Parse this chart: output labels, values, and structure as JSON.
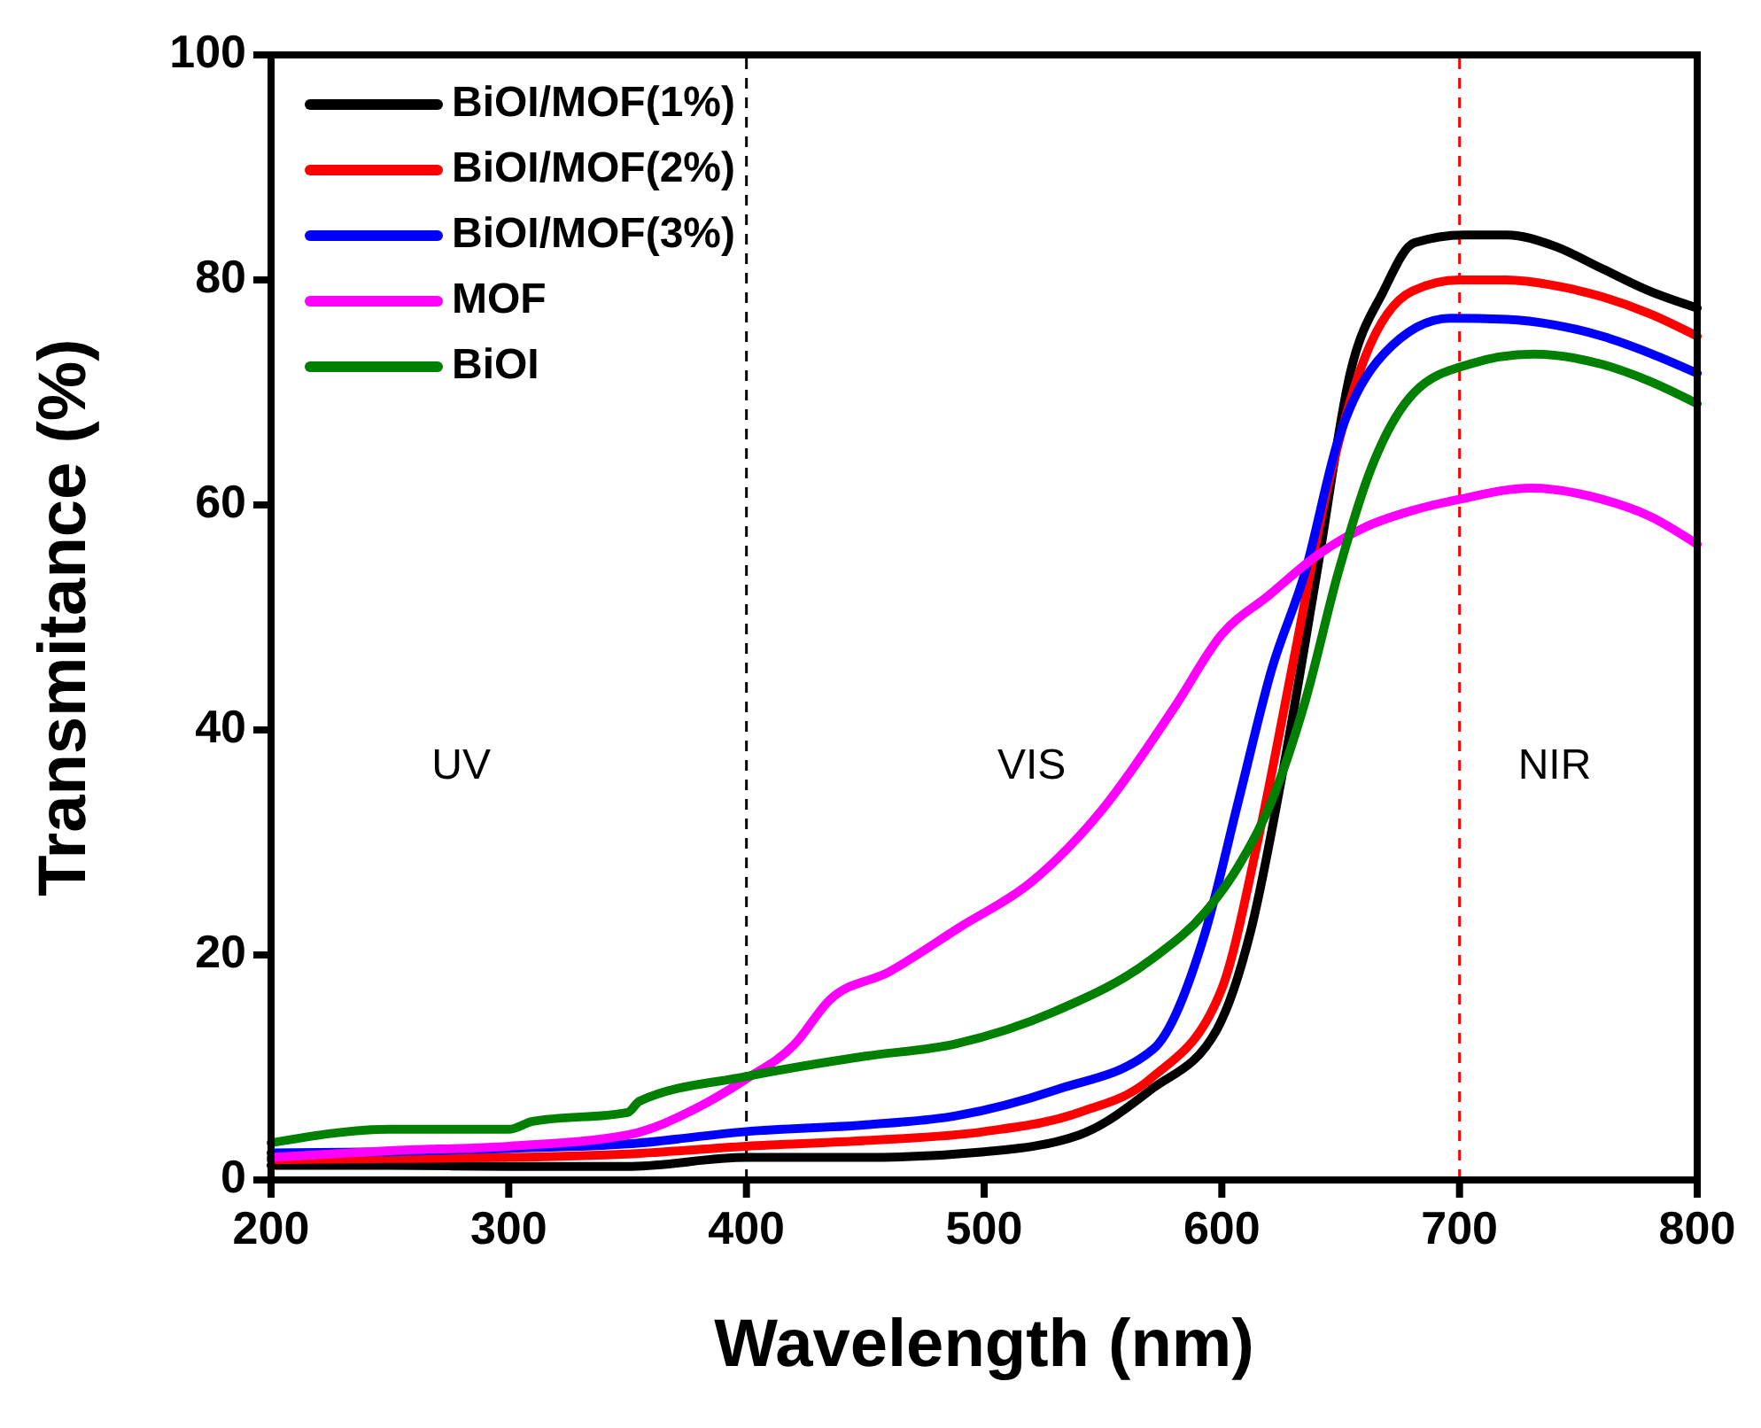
{
  "chart_data": {
    "type": "line",
    "xlabel": "Wavelength (nm)",
    "ylabel": "Transmitance (%)",
    "xlim": [
      200,
      800
    ],
    "xticks": [
      200,
      300,
      400,
      500,
      600,
      700,
      800
    ],
    "ylim": [
      0,
      100
    ],
    "yticks": [
      0,
      20,
      40,
      60,
      80,
      100
    ],
    "grid": false,
    "legend": "top left",
    "line_style": "solid",
    "marker": "none",
    "series": [
      {
        "name": "BiOI/MOF(1%)",
        "color": "#000000",
        "x": [
          200,
          250,
          300,
          350,
          400,
          450,
          500,
          540,
          570,
          598,
          612,
          626,
          640,
          654,
          668,
          681,
          702,
          720,
          740,
          760,
          780,
          800
        ],
        "values": [
          1.3,
          1.3,
          1.2,
          1.2,
          2,
          2,
          2.5,
          4,
          8,
          13.4,
          22,
          36.7,
          54,
          71.7,
          79,
          83.3,
          84,
          84,
          83,
          81,
          79,
          77.5
        ]
      },
      {
        "name": "BiOI/MOF(2%)",
        "color": "#ff0000",
        "x": [
          200,
          250,
          300,
          350,
          400,
          450,
          500,
          540,
          570,
          600,
          615,
          630,
          645,
          660,
          680,
          700,
          720,
          740,
          760,
          780,
          800
        ],
        "values": [
          1.8,
          1.9,
          2,
          2.3,
          3,
          3.5,
          4.3,
          6,
          9,
          17,
          30,
          46,
          62,
          73,
          79,
          80,
          80,
          79.5,
          78.5,
          77,
          75
        ]
      },
      {
        "name": "BiOI/MOF(3%)",
        "color": "#0000ff",
        "x": [
          200,
          250,
          300,
          350,
          400,
          450,
          488,
          530,
          571,
          593,
          607,
          621,
          635,
          649,
          668,
          696,
          720,
          740,
          760,
          780,
          800
        ],
        "values": [
          2.4,
          2.5,
          2.8,
          3.2,
          4.3,
          4.9,
          5.7,
          8,
          11.6,
          22,
          33.7,
          45.4,
          54,
          65.8,
          73.4,
          76.6,
          76.5,
          76,
          75,
          73.5,
          71.7
        ]
      },
      {
        "name": "MOF",
        "color": "#ff00ff",
        "x": [
          200,
          250,
          300,
          350,
          380,
          400,
          420,
          435,
          460,
          490,
          520,
          550,
          580,
          600,
          620,
          640,
          660,
          680,
          700,
          730,
          760,
          780,
          800
        ],
        "values": [
          2,
          2.6,
          3,
          4,
          6.5,
          9,
          12,
          16,
          18.5,
          22.5,
          26.5,
          33,
          42,
          48.5,
          52,
          55.5,
          58,
          59.5,
          60.5,
          61.5,
          60.5,
          59,
          56.5
        ]
      },
      {
        "name": "BiOI",
        "color": "#008000",
        "x": [
          200,
          250,
          300,
          310,
          350,
          355,
          400,
          450,
          488,
          530,
          571,
          593,
          607,
          621,
          635,
          649,
          662,
          681,
          704,
          731,
          760,
          780,
          800
        ],
        "values": [
          3.3,
          4.5,
          4.5,
          5.2,
          6,
          7,
          9.2,
          11,
          12.1,
          15,
          19.7,
          23.8,
          27.9,
          33.7,
          42.5,
          54,
          62.8,
          70,
          72.5,
          73.4,
          72.5,
          71,
          69
        ]
      }
    ],
    "ref_lines": [
      {
        "axis": "x",
        "value": 400,
        "color": "#000000",
        "line_style": "dashed"
      },
      {
        "axis": "x",
        "value": 700,
        "color": "#ff0000",
        "line_style": "dashed"
      }
    ],
    "annotations": [
      "UV",
      "VIS",
      "NIR"
    ]
  }
}
